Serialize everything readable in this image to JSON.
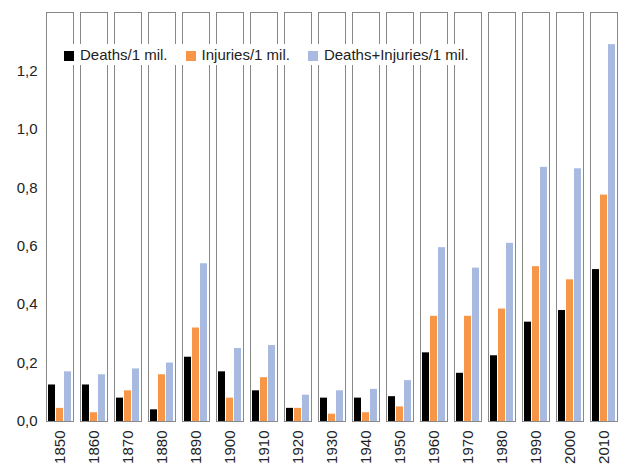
{
  "chart_data": {
    "type": "bar",
    "categories": [
      "1850",
      "1860",
      "1870",
      "1880",
      "1890",
      "1900",
      "1910",
      "1920",
      "1930",
      "1940",
      "1950",
      "1960",
      "1970",
      "1980",
      "1990",
      "2000",
      "2010"
    ],
    "series": [
      {
        "name": "Deaths/1 mil.",
        "color": "#000000",
        "values": [
          0.125,
          0.125,
          0.08,
          0.04,
          0.22,
          0.17,
          0.105,
          0.045,
          0.08,
          0.08,
          0.085,
          0.235,
          0.165,
          0.225,
          0.34,
          0.38,
          0.52
        ]
      },
      {
        "name": "Injuries/1 mil.",
        "color": "#f79646",
        "values": [
          0.045,
          0.03,
          0.105,
          0.16,
          0.32,
          0.08,
          0.15,
          0.045,
          0.025,
          0.03,
          0.05,
          0.36,
          0.36,
          0.385,
          0.53,
          0.485,
          0.775
        ]
      },
      {
        "name": "Deaths+Injuries/1 mil.",
        "color": "#a8badf",
        "values": [
          0.17,
          0.16,
          0.18,
          0.2,
          0.54,
          0.25,
          0.26,
          0.09,
          0.105,
          0.11,
          0.14,
          0.595,
          0.525,
          0.61,
          0.87,
          0.865,
          1.29
        ]
      }
    ],
    "ylim": [
      0,
      1.4
    ],
    "yticks": [
      {
        "value": 0,
        "label": "0,0"
      },
      {
        "value": 0.2,
        "label": "0,2"
      },
      {
        "value": 0.4,
        "label": "0,4"
      },
      {
        "value": 0.6,
        "label": "0,6"
      },
      {
        "value": 0.8,
        "label": "0,8"
      },
      {
        "value": 1.0,
        "label": "1,0"
      },
      {
        "value": 1.2,
        "label": "1,2"
      }
    ],
    "legend": "top-left",
    "grid": false
  }
}
